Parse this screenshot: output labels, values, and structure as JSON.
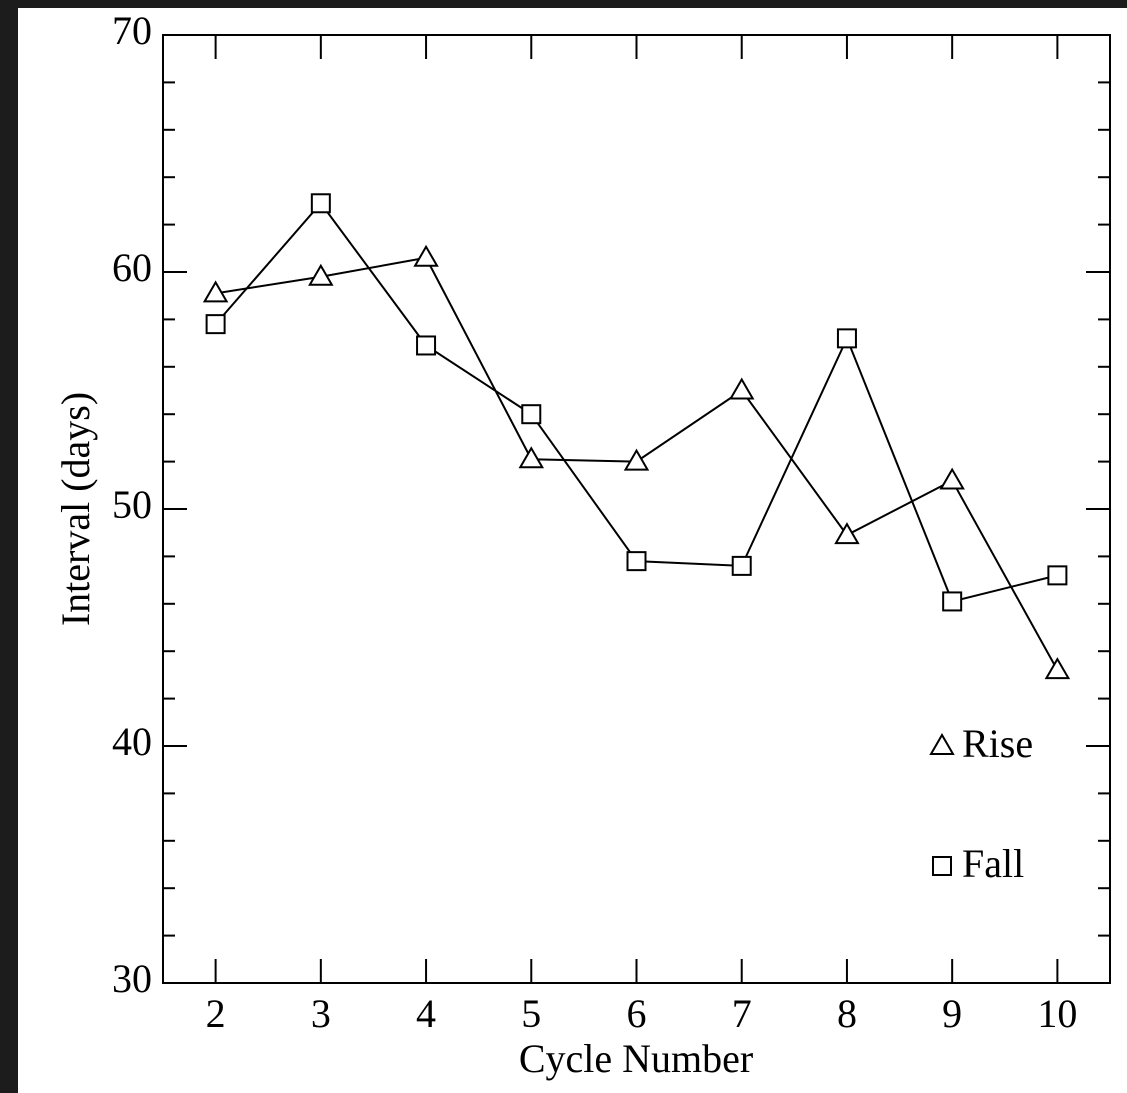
{
  "chart_data": {
    "type": "line",
    "x_label": "Cycle Number",
    "y_label": "Interval (days)",
    "x": [
      2,
      3,
      4,
      5,
      6,
      7,
      8,
      9,
      10
    ],
    "series": [
      {
        "name": "Rise",
        "marker": "triangle",
        "color": "#000000",
        "values": [
          59.1,
          59.8,
          60.6,
          52.1,
          52.0,
          55.0,
          48.9,
          51.2,
          43.2
        ]
      },
      {
        "name": "Fall",
        "marker": "square",
        "color": "#000000",
        "values": [
          57.8,
          62.9,
          56.9,
          54.0,
          47.8,
          47.6,
          57.2,
          46.1,
          47.2
        ]
      }
    ],
    "xlim": [
      1.5,
      10.5
    ],
    "ylim": [
      30,
      70
    ],
    "xticks": [
      2,
      3,
      4,
      5,
      6,
      7,
      8,
      9,
      10
    ],
    "yticks": [
      30,
      40,
      50,
      60,
      70
    ],
    "yminorticks": [
      32,
      34,
      36,
      38,
      42,
      44,
      46,
      48,
      52,
      54,
      56,
      58,
      62,
      64,
      66,
      68
    ],
    "legend": "lower right"
  }
}
